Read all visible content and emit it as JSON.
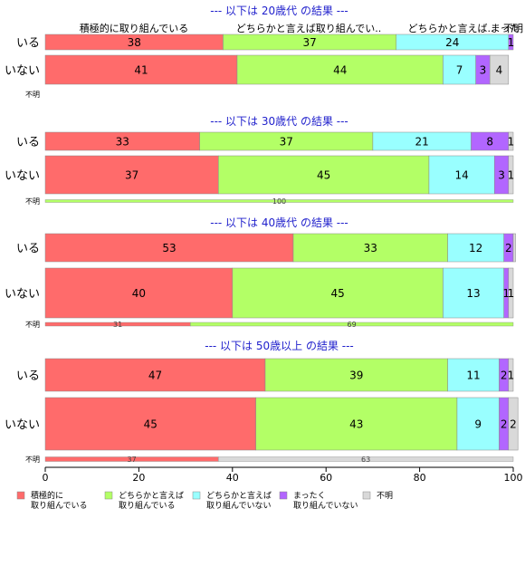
{
  "colors": {
    "series": [
      "#ff6b6b",
      "#b3ff66",
      "#99ffff",
      "#b266ff",
      "#d9d9d9"
    ],
    "group_title": "#1f1fcc",
    "axis": "#000000",
    "text": "#000000"
  },
  "chart_data": {
    "type": "bar",
    "orientation": "horizontal",
    "stacked": true,
    "xlim": [
      0,
      100
    ],
    "xticks": [
      "0",
      "20",
      "40",
      "60",
      "80",
      "100"
    ],
    "legend": {
      "placement": "bottom-left",
      "entries": [
        {
          "line1": "積極的に",
          "line2": "取り組んでいる"
        },
        {
          "line1": "どちらかと言えば",
          "line2": "取り組んでいる"
        },
        {
          "line1": "どちらかと言えば",
          "line2": "取り組んでいない"
        },
        {
          "line1": "まったく",
          "line2": "取り組んでいない"
        },
        {
          "line1": "不明",
          "line2": ""
        }
      ]
    },
    "top_column_labels": [
      "積極的に取り組んでいる",
      "どちらかと言えば取り組んでい..",
      "どちらかと言えば..",
      "まった",
      "不明"
    ],
    "groups": [
      {
        "title": "--- 以下は 20歳代 の結果 ---",
        "rows": [
          {
            "label": "いる",
            "values": [
              38,
              37,
              24,
              1,
              0
            ],
            "value_labels": [
              "38",
              "37",
              "24",
              "1",
              ""
            ]
          },
          {
            "label": "いない",
            "values": [
              41,
              44,
              7,
              3,
              4
            ],
            "value_labels": [
              "41",
              "44",
              "7",
              "3",
              "4"
            ]
          }
        ],
        "unknown_row": {
          "label": "不明",
          "values": [],
          "value_labels": []
        }
      },
      {
        "title": "--- 以下は 30歳代 の結果 ---",
        "rows": [
          {
            "label": "いる",
            "values": [
              33,
              37,
              21,
              8,
              1
            ],
            "value_labels": [
              "33",
              "37",
              "21",
              "8",
              "1"
            ]
          },
          {
            "label": "いない",
            "values": [
              37,
              45,
              14,
              3,
              1
            ],
            "value_labels": [
              "37",
              "45",
              "14",
              "3",
              "1"
            ]
          }
        ],
        "unknown_row": {
          "label": "不明",
          "values": [
            0,
            100,
            0,
            0,
            0
          ],
          "value_labels": [
            "",
            "100",
            "",
            "",
            ""
          ]
        }
      },
      {
        "title": "--- 以下は 40歳代 の結果 ---",
        "rows": [
          {
            "label": "いる",
            "values": [
              53,
              33,
              12,
              2,
              0.5
            ],
            "value_labels": [
              "53",
              "33",
              "12",
              "2",
              ""
            ]
          },
          {
            "label": "いない",
            "values": [
              40,
              45,
              13,
              1,
              1
            ],
            "value_labels": [
              "40",
              "45",
              "13",
              "1",
              "1"
            ]
          }
        ],
        "unknown_row": {
          "label": "不明",
          "values": [
            31,
            69,
            0,
            0,
            0
          ],
          "value_labels": [
            "31",
            "69",
            "",
            "",
            ""
          ]
        }
      },
      {
        "title": "--- 以下は 50歳以上 の結果 ---",
        "rows": [
          {
            "label": "いる",
            "values": [
              47,
              39,
              11,
              2,
              1
            ],
            "value_labels": [
              "47",
              "39",
              "11",
              "2",
              "1"
            ]
          },
          {
            "label": "いない",
            "values": [
              45,
              43,
              9,
              2,
              2
            ],
            "value_labels": [
              "45",
              "43",
              "9",
              "2",
              "2"
            ]
          }
        ],
        "unknown_row": {
          "label": "不明",
          "values": [
            37,
            0,
            0,
            0,
            63
          ],
          "value_labels": [
            "37",
            "",
            "",
            "",
            "63"
          ]
        }
      }
    ]
  }
}
